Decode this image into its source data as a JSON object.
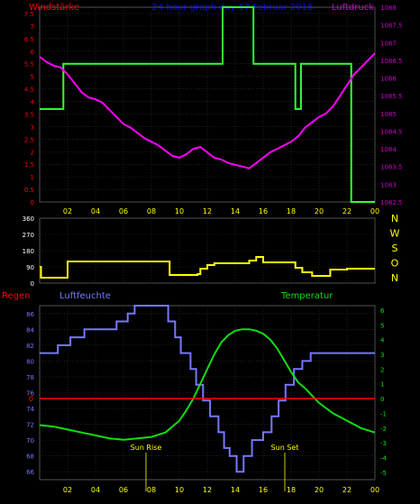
{
  "page": {
    "title": "24 hour graph day  17 Februar 2018",
    "label_windstaerke": "Windstärke",
    "label_luftdruck": "Luftdruck",
    "label_regen": "Regen",
    "label_luftfeuchte": "Luftfeuchte",
    "label_temperatur": "Temperatur",
    "label_sunrise": "Sun Rise",
    "label_sunset": "Sun Set",
    "label_sunrise_time": "07:03",
    "label_sunset_time": "17:30"
  },
  "colors": {
    "background": "#000000",
    "panel_bg": "#000000",
    "grid": "#333333",
    "axis_text_top_left": "#ff0000",
    "axis_text_top_right": "#cc00cc",
    "title": "#0000ff",
    "wind": "#33ff33",
    "pressure": "#ff00ff",
    "direction": "#ffff00",
    "direction_axis": "#ffff00",
    "humidity": "#7777ff",
    "temperature": "#11dd11",
    "rain": "#ff0000",
    "sun_label": "#ffff00",
    "xtick": "#ffff00"
  },
  "x_ticks": [
    "02",
    "04",
    "06",
    "08",
    "10",
    "12",
    "14",
    "16",
    "18",
    "20",
    "22",
    "00"
  ],
  "chart_data": [
    {
      "id": "wind_pressure",
      "type": "line",
      "title": "24 hour graph day  17 Februar 2018",
      "x_range": [
        0,
        24
      ],
      "left_axis": {
        "label": "Windstärke",
        "ticks": [
          "0",
          "0.5",
          "1",
          "1.5",
          "2",
          "2.5",
          "3",
          "3.5",
          "4",
          "4.5",
          "5",
          "5.5",
          "6",
          "6.5",
          "7",
          "7.5"
        ],
        "ylim": [
          0,
          7.75
        ]
      },
      "right_axis": {
        "label": "Luftdruck",
        "ticks": [
          "1082.5",
          "1083",
          "1083.5",
          "1084",
          "1084.5",
          "1085",
          "1085.5",
          "1086",
          "1086.5",
          "1087",
          "1087.5",
          "1088"
        ],
        "ylim": [
          1082.5,
          1088
        ]
      },
      "series": [
        {
          "name": "Windstärke",
          "axis": "left",
          "step": true,
          "x": [
            0,
            1.7,
            1.7,
            13.1,
            13.1,
            15.3,
            15.3,
            18.3,
            18.3,
            18.7,
            18.7,
            22.3,
            22.3,
            24
          ],
          "y": [
            3.7,
            3.7,
            5.5,
            5.5,
            7.75,
            7.75,
            5.5,
            5.5,
            3.7,
            3.7,
            5.5,
            5.5,
            0,
            0
          ]
        },
        {
          "name": "Luftdruck",
          "axis": "right",
          "x": [
            0,
            0.5,
            1,
            1.5,
            2,
            2.5,
            3,
            3.5,
            4,
            4.5,
            5,
            5.5,
            6,
            6.5,
            7,
            7.5,
            8,
            8.5,
            9,
            9.5,
            10,
            10.5,
            11,
            11.5,
            12,
            12.5,
            13,
            13.5,
            14,
            14.5,
            15,
            15.5,
            16,
            16.5,
            17,
            17.5,
            18,
            18.5,
            19,
            19.5,
            20,
            20.5,
            21,
            21.5,
            22,
            22.5,
            23,
            23.5,
            24
          ],
          "y": [
            1086.6,
            1086.45,
            1086.35,
            1086.3,
            1086.1,
            1085.85,
            1085.6,
            1085.45,
            1085.4,
            1085.3,
            1085.1,
            1084.9,
            1084.7,
            1084.6,
            1084.45,
            1084.3,
            1084.2,
            1084.1,
            1083.95,
            1083.8,
            1083.75,
            1083.85,
            1084.0,
            1084.05,
            1083.9,
            1083.75,
            1083.7,
            1083.6,
            1083.55,
            1083.5,
            1083.45,
            1083.6,
            1083.75,
            1083.9,
            1084.0,
            1084.1,
            1084.2,
            1084.35,
            1084.6,
            1084.75,
            1084.9,
            1085.0,
            1085.2,
            1085.5,
            1085.8,
            1086.1,
            1086.3,
            1086.5,
            1086.7
          ]
        }
      ]
    },
    {
      "id": "wind_direction",
      "type": "line",
      "x_range": [
        0,
        24
      ],
      "left_axis": {
        "ticks": [
          "0",
          "90",
          "180",
          "270",
          "360"
        ],
        "ylim": [
          0,
          360
        ]
      },
      "right_axis": {
        "ticks": [
          "N",
          "W",
          "S",
          "O",
          "N"
        ]
      },
      "series": [
        {
          "name": "Windrichtung",
          "step": true,
          "x": [
            0,
            0.1,
            0.1,
            2.0,
            2.0,
            9.3,
            9.3,
            11.3,
            11.3,
            11.5,
            11.5,
            12.0,
            12.0,
            12.5,
            12.5,
            15.0,
            15.0,
            15.5,
            15.5,
            16.0,
            16.0,
            18.3,
            18.3,
            18.8,
            18.8,
            19.5,
            19.5,
            20.8,
            20.8,
            22.0,
            22.0,
            24
          ],
          "y": [
            90,
            90,
            30,
            30,
            120,
            120,
            45,
            45,
            50,
            50,
            80,
            80,
            100,
            100,
            110,
            110,
            125,
            125,
            145,
            145,
            115,
            115,
            85,
            85,
            60,
            60,
            40,
            40,
            75,
            75,
            80,
            80
          ]
        }
      ]
    },
    {
      "id": "humidity_temp",
      "type": "line",
      "x_range": [
        0,
        24
      ],
      "left_axis": {
        "label": "Luftfeuchte",
        "ticks": [
          "66",
          "68",
          "70",
          "72",
          "74",
          "76",
          "78",
          "80",
          "82",
          "84",
          "86"
        ],
        "ylim": [
          65,
          87
        ]
      },
      "right_axis": {
        "label": "Temperatur",
        "ticks": [
          "-5",
          "-4",
          "-3",
          "-2",
          "-1",
          "0",
          "1",
          "2",
          "3",
          "4",
          "5",
          "6"
        ],
        "ylim": [
          -5.5,
          6.3
        ]
      },
      "rain_marker": {
        "label": "Regen",
        "value": "0"
      },
      "series": [
        {
          "name": "Luftfeuchte",
          "axis": "left",
          "step": true,
          "x": [
            0,
            1.3,
            1.3,
            2.2,
            2.2,
            3.2,
            3.2,
            5.5,
            5.5,
            6.3,
            6.3,
            6.8,
            6.8,
            9.2,
            9.2,
            9.7,
            9.7,
            10.1,
            10.1,
            10.8,
            10.8,
            11.2,
            11.2,
            11.7,
            11.7,
            12.2,
            12.2,
            12.8,
            12.8,
            13.2,
            13.2,
            13.6,
            13.6,
            14.1,
            14.1,
            14.6,
            14.6,
            15.2,
            15.2,
            16.0,
            16.0,
            16.6,
            16.6,
            17.1,
            17.1,
            17.6,
            17.6,
            18.2,
            18.2,
            18.8,
            18.8,
            19.4,
            19.4,
            20.3,
            20.3,
            24
          ],
          "y": [
            81,
            81,
            82,
            82,
            83,
            83,
            84,
            84,
            85,
            85,
            86,
            86,
            87,
            87,
            85,
            85,
            83,
            83,
            81,
            81,
            79,
            79,
            77,
            77,
            75,
            75,
            73,
            73,
            71,
            71,
            69,
            69,
            68,
            68,
            66,
            66,
            68,
            68,
            70,
            70,
            71,
            71,
            73,
            73,
            75,
            75,
            77,
            77,
            79,
            79,
            80,
            80,
            81,
            81,
            81,
            81
          ]
        },
        {
          "name": "Temperatur",
          "axis": "right",
          "x": [
            0,
            1,
            2,
            3,
            4,
            5,
            6,
            7,
            8,
            9,
            10,
            10.5,
            11,
            11.5,
            12,
            12.5,
            13,
            13.5,
            14,
            14.5,
            15,
            15.5,
            16,
            16.5,
            17,
            17.5,
            18,
            18.5,
            19,
            19.5,
            20,
            21,
            22,
            23,
            24
          ],
          "y": [
            -1.8,
            -1.9,
            -2.1,
            -2.3,
            -2.5,
            -2.7,
            -2.8,
            -2.7,
            -2.6,
            -2.3,
            -1.5,
            -0.8,
            0.0,
            1.0,
            2.0,
            3.0,
            3.8,
            4.3,
            4.6,
            4.7,
            4.7,
            4.6,
            4.4,
            4.0,
            3.4,
            2.6,
            1.8,
            1.1,
            0.7,
            0.2,
            -0.3,
            -1.0,
            -1.5,
            -2.0,
            -2.3
          ]
        }
      ]
    }
  ]
}
